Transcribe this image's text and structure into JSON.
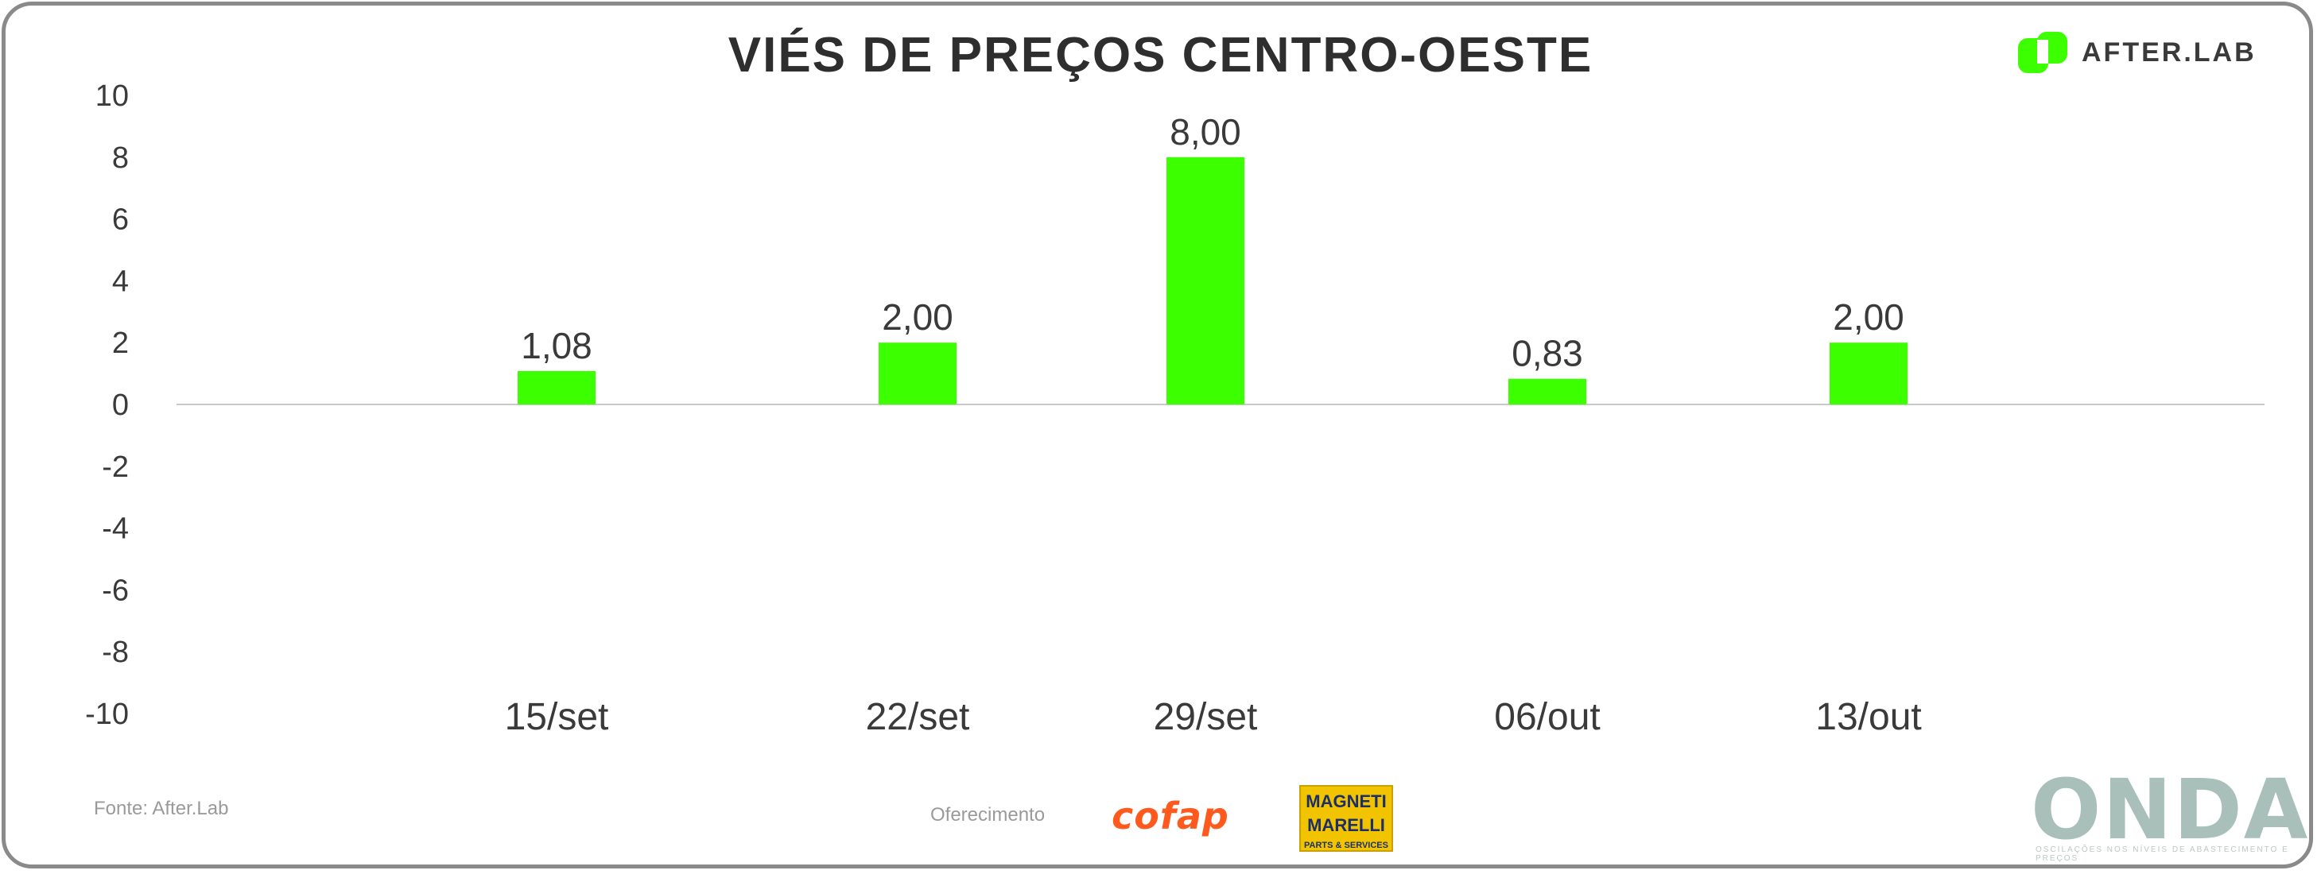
{
  "header": {
    "title": "VIÉS DE PREÇOS CENTRO-OESTE",
    "brand": "AFTER.LAB"
  },
  "colors": {
    "bar": "#3cff00",
    "axis_text": "#3a3a3a",
    "zero_line": "#c8c8c8",
    "cofap": "#ff5a1e",
    "magneti_bg": "#f2c400",
    "onda": "#a8bfba",
    "afterlab_mark": "#3cff00"
  },
  "chart_data": {
    "type": "bar",
    "title": "VIÉS DE PREÇOS CENTRO-OESTE",
    "categories": [
      "15/set",
      "22/set",
      "29/set",
      "06/out",
      "13/out"
    ],
    "values": [
      1.08,
      2.0,
      8.0,
      0.83,
      2.0
    ],
    "value_labels": [
      "1,08",
      "2,00",
      "8,00",
      "0,83",
      "2,00"
    ],
    "ylim": [
      -10,
      10
    ],
    "yticks": [
      10,
      8,
      6,
      4,
      2,
      0,
      -2,
      -4,
      -6,
      -8,
      -10
    ],
    "grid": false,
    "legend": "none"
  },
  "footer": {
    "source": "Fonte: After.Lab",
    "sponsor_label": "Oferecimento",
    "cofap": "cofap",
    "magneti_line1": "MAGNETI",
    "magneti_line2": "MARELLI",
    "magneti_line3": "PARTS & SERVICES",
    "onda": "ONDA",
    "onda_tagline": "OSCILAÇÕES NOS NÍVEIS DE ABASTECIMENTO E PREÇOS"
  },
  "icons": [
    "afterlab-logo-icon",
    "cofap-logo-icon",
    "magneti-marelli-logo-icon",
    "onda-logo-icon"
  ]
}
